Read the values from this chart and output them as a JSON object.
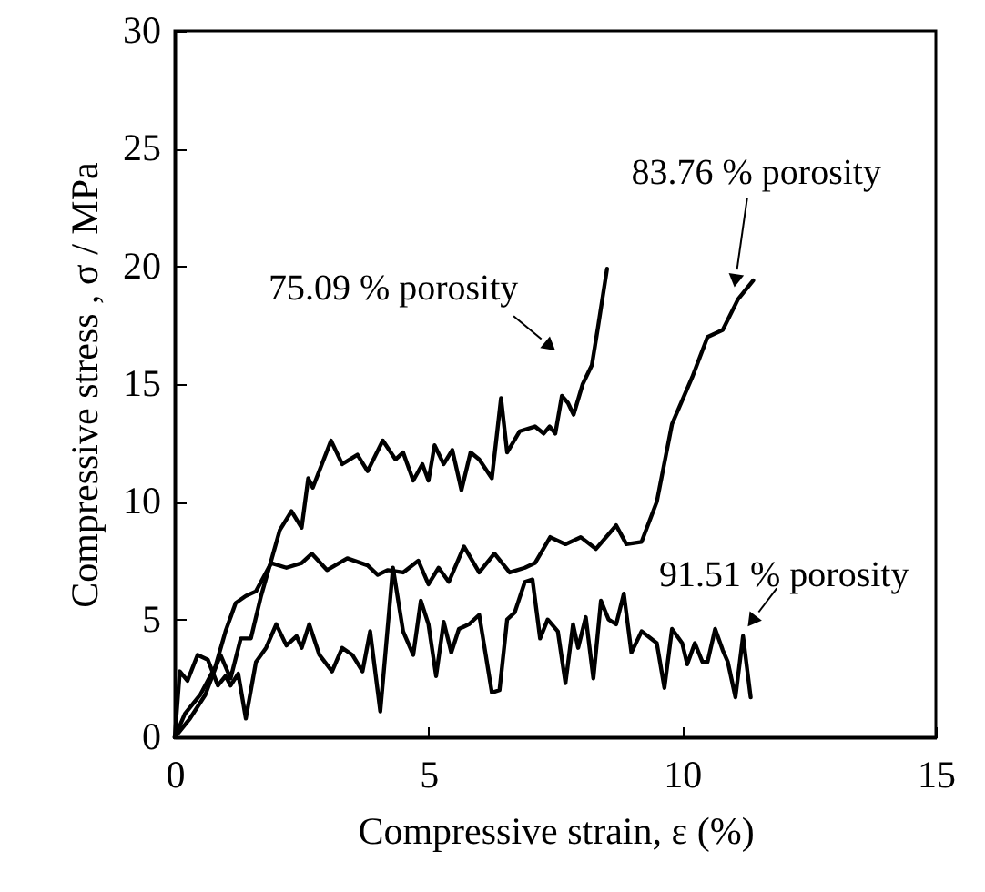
{
  "chart_data": {
    "type": "line",
    "xlabel": "Compressive strain, ε (%)",
    "ylabel": "Compressive stress , σ / MPa",
    "xlim": [
      0,
      15
    ],
    "xticks": [
      0,
      5,
      10,
      15
    ],
    "ylim": [
      0,
      30
    ],
    "yticks": [
      0,
      5,
      10,
      15,
      20,
      25,
      30
    ],
    "grid": false,
    "marker": "none",
    "line_style": "solid",
    "series": [
      {
        "color": "#000000",
        "x": [
          0,
          0.3,
          0.6,
          0.9,
          1.1,
          1.3,
          1.5,
          1.7,
          1.9,
          2.07,
          2.3,
          2.5,
          2.63,
          2.72,
          3.08,
          3.3,
          3.6,
          3.8,
          4.1,
          4.35,
          4.5,
          4.7,
          4.88,
          5.0,
          5.12,
          5.3,
          5.47,
          5.65,
          5.83,
          6.0,
          6.25,
          6.43,
          6.55,
          6.8,
          7.1,
          7.27,
          7.39,
          7.5,
          7.63,
          7.75,
          7.86,
          8.04,
          8.22,
          8.34,
          8.52
        ],
        "values": [
          0,
          0.8,
          1.8,
          3.5,
          2.5,
          4.2,
          4.2,
          6,
          7.5,
          8.8,
          9.6,
          8.9,
          11,
          10.6,
          12.6,
          11.6,
          12,
          11.3,
          12.6,
          11.8,
          12.1,
          10.9,
          11.6,
          10.9,
          12.4,
          11.6,
          12.2,
          10.5,
          12.1,
          11.8,
          11,
          14.4,
          12.1,
          13,
          13.2,
          12.9,
          13.2,
          12.9,
          14.5,
          14.2,
          13.7,
          15,
          15.8,
          17.4,
          19.9
        ]
      },
      {
        "color": "#000000",
        "x": [
          0,
          0.2,
          0.5,
          0.8,
          1.0,
          1.2,
          1.4,
          1.6,
          1.9,
          2.2,
          2.5,
          2.7,
          3.0,
          3.4,
          3.8,
          4.0,
          4.2,
          4.5,
          4.8,
          5.0,
          5.2,
          5.4,
          5.7,
          6.0,
          6.3,
          6.6,
          6.9,
          7.1,
          7.4,
          7.7,
          8.0,
          8.3,
          8.7,
          8.9,
          9.2,
          9.5,
          9.8,
          10.2,
          10.5,
          10.8,
          11.1,
          11.4
        ],
        "values": [
          0,
          1.0,
          1.8,
          3,
          4.5,
          5.7,
          6,
          6.2,
          7.4,
          7.2,
          7.4,
          7.8,
          7.1,
          7.6,
          7.3,
          6.9,
          7.1,
          7.0,
          7.5,
          6.5,
          7.2,
          6.6,
          8.1,
          7.0,
          7.8,
          7.0,
          7.2,
          7.4,
          8.5,
          8.2,
          8.5,
          8.0,
          9.0,
          8.2,
          8.3,
          10,
          13.3,
          15.3,
          17,
          17.3,
          18.6,
          19.4
        ]
      },
      {
        "color": "#000000",
        "x": [
          0,
          0.1,
          0.25,
          0.45,
          0.65,
          0.85,
          1.0,
          1.1,
          1.25,
          1.4,
          1.6,
          1.8,
          2.0,
          2.2,
          2.4,
          2.5,
          2.65,
          2.85,
          3.1,
          3.3,
          3.5,
          3.7,
          3.85,
          4.05,
          4.3,
          4.5,
          4.7,
          4.85,
          5.0,
          5.15,
          5.3,
          5.45,
          5.6,
          5.8,
          6.0,
          6.25,
          6.4,
          6.55,
          6.7,
          6.9,
          7.05,
          7.2,
          7.35,
          7.55,
          7.7,
          7.85,
          7.95,
          8.1,
          8.25,
          8.4,
          8.55,
          8.7,
          8.85,
          9.0,
          9.2,
          9.5,
          9.65,
          9.8,
          10.0,
          10.1,
          10.25,
          10.4,
          10.5,
          10.65,
          10.8,
          10.9,
          11.05,
          11.2,
          11.35
        ],
        "values": [
          0,
          2.8,
          2.4,
          3.5,
          3.3,
          2.2,
          2.6,
          2.2,
          2.7,
          0.8,
          3.2,
          3.8,
          4.8,
          3.9,
          4.3,
          3.8,
          4.8,
          3.5,
          2.8,
          3.8,
          3.5,
          2.8,
          4.5,
          1.1,
          7.2,
          4.5,
          3.5,
          5.8,
          4.8,
          2.6,
          4.9,
          3.6,
          4.6,
          4.8,
          5.2,
          1.9,
          2.0,
          5.0,
          5.3,
          6.6,
          6.7,
          4.2,
          5.0,
          4.5,
          2.3,
          4.8,
          3.8,
          5.1,
          2.5,
          5.8,
          5.0,
          4.8,
          6.1,
          3.6,
          4.5,
          4.0,
          2.1,
          4.6,
          4.0,
          3.1,
          4.0,
          3.2,
          3.2,
          4.6,
          3.7,
          3.2,
          1.7,
          4.3,
          1.7
        ]
      }
    ],
    "annotations": [
      {
        "text": "75.09 % porosity",
        "x": 8.22,
        "y": 15.8
      },
      {
        "text": "83.76 % porosity",
        "x": 11.03,
        "y": 19.1
      },
      {
        "text": "91.51 % porosity",
        "x": 11.29,
        "y": 4.7
      }
    ]
  }
}
